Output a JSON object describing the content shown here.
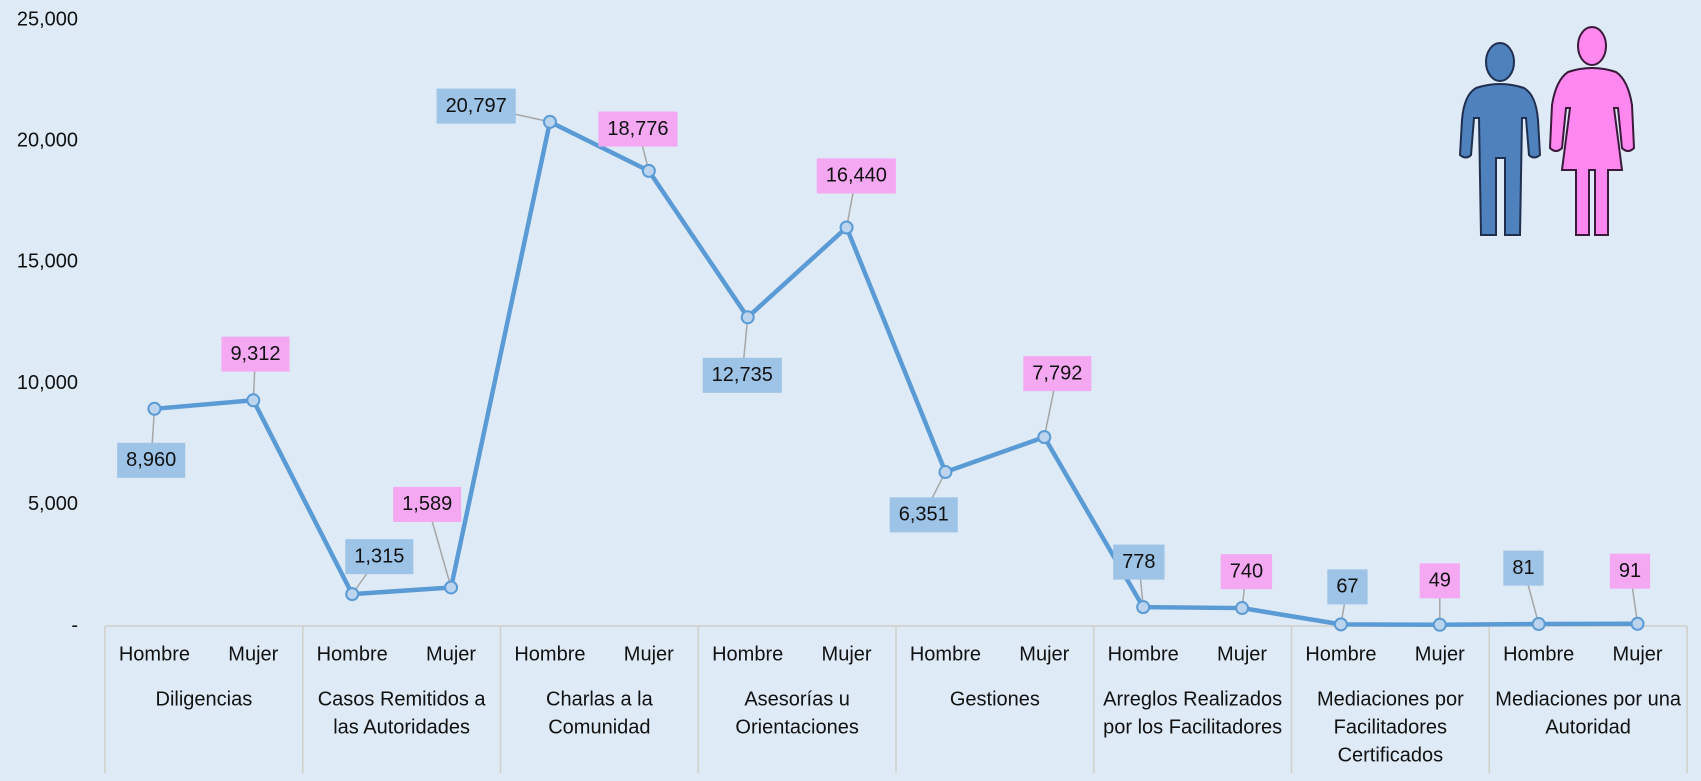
{
  "chart_data": {
    "type": "line",
    "categories": [
      "Hombre",
      "Mujer",
      "Hombre",
      "Mujer",
      "Hombre",
      "Mujer",
      "Hombre",
      "Mujer",
      "Hombre",
      "Mujer",
      "Hombre",
      "Mujer",
      "Hombre",
      "Mujer",
      "Hombre",
      "Mujer"
    ],
    "groups": [
      [
        "Diligencias"
      ],
      [
        "Casos Remitidos a",
        "las Autoridades"
      ],
      [
        "Charlas a la",
        "Comunidad"
      ],
      [
        "Asesorías u",
        "Orientaciones"
      ],
      [
        "Gestiones"
      ],
      [
        "Arreglos Realizados",
        "por los Facilitadores"
      ],
      [
        "Mediaciones por",
        "Facilitadores",
        "Certificados"
      ],
      [
        "Mediaciones por una",
        "Autoridad"
      ]
    ],
    "series": [
      {
        "color": "#5b9bd5",
        "values": [
          8960,
          9312,
          1315,
          1589,
          20797,
          18776,
          12735,
          16440,
          6351,
          7792,
          778,
          740,
          67,
          49,
          81,
          91
        ],
        "value_labels": [
          "8,960",
          "9,312",
          "1,315",
          "1,589",
          "20,797",
          "18,776",
          "12,735",
          "16,440",
          "6,351",
          "7,792",
          "778",
          "740",
          "67",
          "49",
          "81",
          "91"
        ]
      }
    ],
    "label_colors": [
      "#9dc3e6",
      "#f5a8f2"
    ],
    "ylim": [
      0,
      25000
    ],
    "yticks": [
      {
        "value": 0,
        "label": "-"
      },
      {
        "value": 5000,
        "label": "5,000"
      },
      {
        "value": 10000,
        "label": "10,000"
      },
      {
        "value": 15000,
        "label": "15,000"
      },
      {
        "value": 20000,
        "label": "20,000"
      },
      {
        "value": 25000,
        "label": "25,000"
      }
    ],
    "grid": false
  }
}
